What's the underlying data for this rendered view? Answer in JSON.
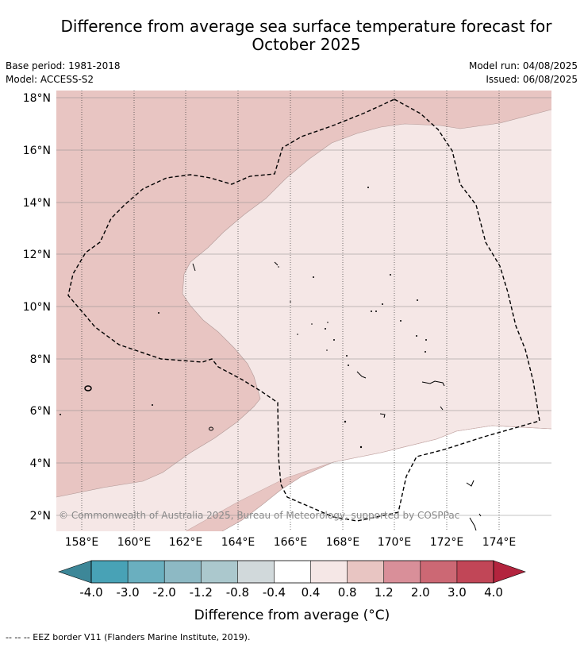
{
  "title_line1": "Difference from average sea surface temperature forecast for",
  "title_line2": "October 2025",
  "base_period": "Base period: 1981-2018",
  "model": "Model: ACCESS-S2",
  "model_run": "Model run: 04/08/2025",
  "issued": "Issued: 06/08/2025",
  "copyright": "© Commonwealth of Australia 2025, Bureau of Meteorology, supported by COSPPac",
  "lat_labels": [
    "18°N",
    "16°N",
    "14°N",
    "12°N",
    "10°N",
    "8°N",
    "6°N",
    "4°N",
    "2°N"
  ],
  "lon_labels": [
    "158°E",
    "160°E",
    "162°E",
    "164°E",
    "166°E",
    "168°E",
    "170°E",
    "172°E",
    "174°E"
  ],
  "colorbar": {
    "ticks": [
      "-4.0",
      "-3.0",
      "-2.0",
      "-1.2",
      "-0.8",
      "-0.4",
      "0.4",
      "0.8",
      "1.2",
      "2.0",
      "3.0",
      "4.0"
    ],
    "colors": [
      "#48a2b6",
      "#6aafbf",
      "#8db9c4",
      "#abc8cd",
      "#d1d9db",
      "#ffffff",
      "#f5e7e6",
      "#e8c5c2",
      "#d98f99",
      "#cc6874",
      "#c14657"
    ],
    "under_color": "#3d8798",
    "over_color": "#b3243e",
    "label": "Difference from average (°C)"
  },
  "legend_text": "-- -- -- EEZ border V11 (Flanders Marine Institute, 2019)."
}
